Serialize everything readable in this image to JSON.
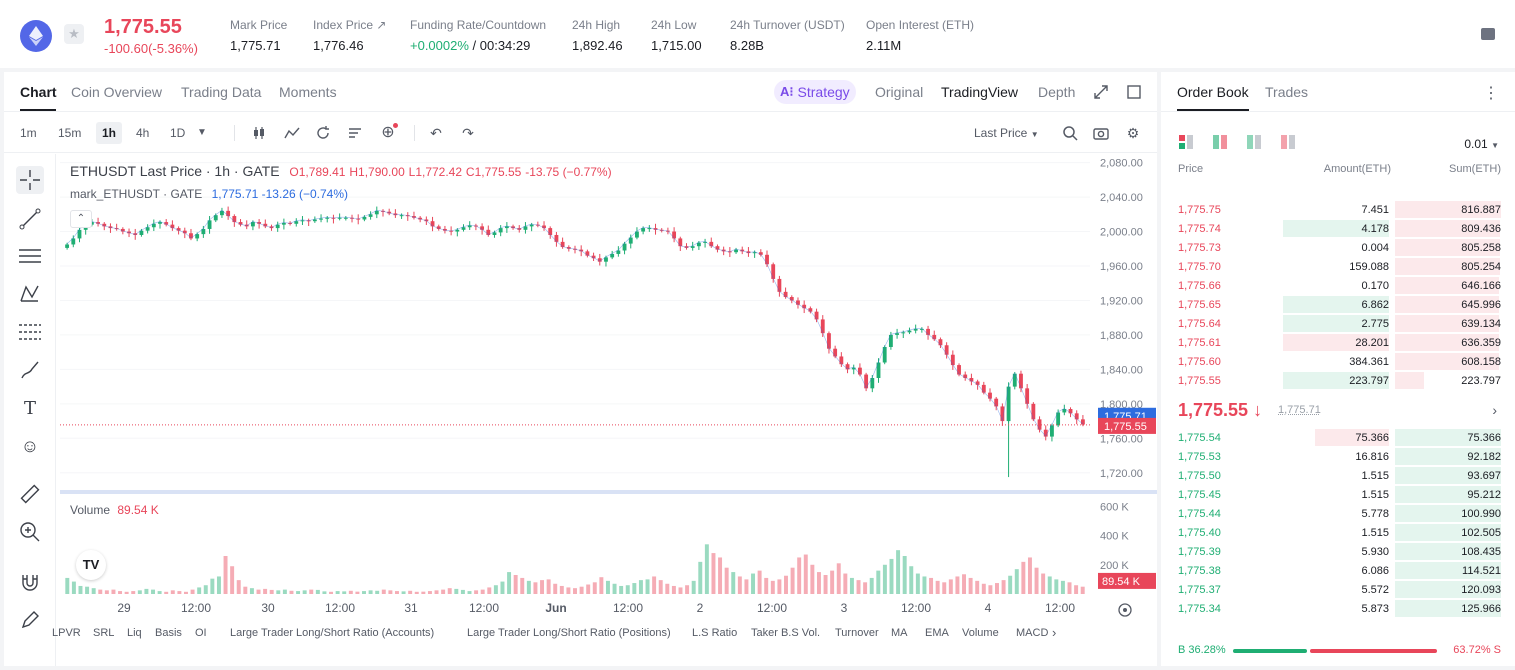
{
  "ticker": {
    "last_price": "1,775.55",
    "change": "-100.60(-5.36%)",
    "stats": [
      {
        "label": "Mark Price",
        "value": "1,775.71",
        "x": 230
      },
      {
        "label": "Index Price ↗",
        "value": "1,776.46",
        "x": 313
      },
      {
        "label": "Funding Rate/Countdown",
        "value_up": "+0.0002%",
        "value": " / 00:34:29",
        "x": 410
      },
      {
        "label": "24h High",
        "value": "1,892.46",
        "x": 572
      },
      {
        "label": "24h Low",
        "value": "1,715.00",
        "x": 651
      },
      {
        "label": "24h Turnover (USDT)",
        "value": "8.28B",
        "x": 730
      },
      {
        "label": "Open Interest (ETH)",
        "value": "2.11M",
        "x": 866
      }
    ]
  },
  "chart_tabs": [
    "Chart",
    "Coin Overview",
    "Trading Data",
    "Moments"
  ],
  "strategy_label": "Strategy",
  "view_options": [
    "Original",
    "TradingView",
    "Depth"
  ],
  "intervals": [
    "1m",
    "15m",
    "1h",
    "4h",
    "1D"
  ],
  "price_type": "Last Price",
  "legend": {
    "symbol": "ETHUSDT Last Price · 1h · GATE",
    "o": "O1,789.41",
    "h": "H1,790.00",
    "l": "L1,772.42",
    "c": "C1,775.55",
    "chg": "-13.75 (−0.77%)",
    "mark_symbol": "mark_ETHUSDT · GATE",
    "mark_val": "1,775.71",
    "mark_chg": "-13.26 (−0.74%)",
    "volume_label": "Volume",
    "volume_val": "89.54 K"
  },
  "indicators": [
    "LPVR",
    "SRL",
    "Liq",
    "Basis",
    "OI",
    "Large Trader Long/Short Ratio (Accounts)",
    "Large Trader Long/Short Ratio (Positions)",
    "L.S Ratio",
    "Taker B.S Vol.",
    "Turnover",
    "MA",
    "EMA",
    "Volume",
    "MACD"
  ],
  "chart_data": {
    "type": "candlestick",
    "price_axis": [
      "2,080.00",
      "2,040.00",
      "2,000.00",
      "1,960.00",
      "1,920.00",
      "1,880.00",
      "1,840.00",
      "1,800.00",
      "1,760.00",
      "1,720.00"
    ],
    "volume_axis": [
      "600 K",
      "400 K",
      "200 K"
    ],
    "time_axis": [
      "29",
      "12:00",
      "30",
      "12:00",
      "31",
      "12:00",
      "Jun",
      "12:00",
      "2",
      "12:00",
      "3",
      "12:00",
      "4",
      "12:00"
    ],
    "mark_price_tag": "1,775.71",
    "last_price_tag": "1,775.55",
    "volume_tag": "89.54 K",
    "ylim": [
      1700,
      2090
    ],
    "close_path": [
      1985,
      1992,
      2002,
      2008,
      2011,
      2009,
      2006,
      2004,
      2003,
      2000,
      1998,
      1996,
      2001,
      2005,
      2009,
      2011,
      2008,
      2004,
      2001,
      1998,
      1992,
      1997,
      2003,
      2013,
      2019,
      2024,
      2018,
      2011,
      2008,
      2006,
      2011,
      2009,
      2006,
      2004,
      2008,
      2010,
      2009,
      2012,
      2013,
      2012,
      2014,
      2015,
      2016,
      2015,
      2016,
      2016,
      2015,
      2014,
      2017,
      2020,
      2024,
      2023,
      2021,
      2019,
      2019,
      2018,
      2016,
      2014,
      2012,
      2006,
      2003,
      2001,
      2000,
      2002,
      2005,
      2007,
      2006,
      2002,
      1996,
      1999,
      2004,
      2006,
      2004,
      2002,
      2006,
      2008,
      2007,
      2004,
      1996,
      1988,
      1982,
      1980,
      1979,
      1977,
      1972,
      1969,
      1965,
      1970,
      1974,
      1978,
      1986,
      1993,
      2000,
      2004,
      2004,
      2002,
      2001,
      2000,
      1992,
      1983,
      1981,
      1983,
      1987,
      1988,
      1983,
      1979,
      1977,
      1976,
      1979,
      1977,
      1975,
      1976,
      1973,
      1962,
      1945,
      1930,
      1924,
      1920,
      1915,
      1911,
      1907,
      1898,
      1882,
      1864,
      1855,
      1846,
      1840,
      1842,
      1834,
      1818,
      1830,
      1848,
      1866,
      1880,
      1882,
      1883,
      1885,
      1887,
      1887,
      1880,
      1875,
      1868,
      1857,
      1845,
      1834,
      1830,
      1826,
      1822,
      1813,
      1806,
      1797,
      1780,
      1820,
      1835,
      1818,
      1800,
      1782,
      1770,
      1762,
      1775,
      1790,
      1794,
      1789,
      1782,
      1776
    ],
    "volume_path": [
      110,
      85,
      55,
      50,
      40,
      30,
      25,
      30,
      20,
      15,
      20,
      25,
      35,
      30,
      20,
      15,
      25,
      20,
      15,
      30,
      45,
      60,
      105,
      120,
      260,
      190,
      95,
      50,
      40,
      30,
      35,
      28,
      25,
      30,
      22,
      20,
      25,
      30,
      28,
      18,
      15,
      20,
      18,
      22,
      16,
      20,
      25,
      22,
      30,
      25,
      20,
      18,
      22,
      15,
      16,
      20,
      25,
      30,
      40,
      35,
      28,
      20,
      25,
      30,
      45,
      60,
      85,
      150,
      130,
      110,
      90,
      80,
      95,
      100,
      70,
      55,
      45,
      40,
      50,
      65,
      80,
      115,
      90,
      70,
      55,
      60,
      75,
      95,
      100,
      120,
      95,
      70,
      55,
      45,
      60,
      90,
      220,
      340,
      280,
      250,
      180,
      150,
      120,
      100,
      140,
      160,
      110,
      90,
      100,
      125,
      180,
      250,
      270,
      200,
      150,
      130,
      160,
      210,
      140,
      110,
      95,
      80,
      110,
      160,
      200,
      240,
      300,
      260,
      190,
      140,
      120,
      110,
      90,
      80,
      100,
      120,
      135,
      110,
      90,
      70,
      60,
      75,
      95,
      125,
      170,
      220,
      250,
      180,
      140,
      120,
      100,
      90,
      80,
      60,
      50
    ]
  },
  "orderbook": {
    "tabs": [
      "Order Book",
      "Trades"
    ],
    "precision": "0.01",
    "headers": {
      "price": "Price",
      "amount": "Amount(ETH)",
      "sum": "Sum(ETH)"
    },
    "asks": [
      {
        "price": "1,775.75",
        "amount": "7.451",
        "sum": "816.887",
        "amt_pct": 0,
        "sum_pct": 100
      },
      {
        "price": "1,775.74",
        "amount": "4.178",
        "sum": "809.436",
        "amt_pct": 100,
        "sum_pct": 99
      },
      {
        "price": "1,775.73",
        "amount": "0.004",
        "sum": "805.258",
        "amt_pct": 0,
        "sum_pct": 99
      },
      {
        "price": "1,775.70",
        "amount": "159.088",
        "sum": "805.254",
        "amt_pct": 0,
        "sum_pct": 99
      },
      {
        "price": "1,775.66",
        "amount": "0.170",
        "sum": "646.166",
        "amt_pct": 0,
        "sum_pct": 98
      },
      {
        "price": "1,775.65",
        "amount": "6.862",
        "sum": "645.996",
        "amt_pct": 100,
        "sum_pct": 98
      },
      {
        "price": "1,775.64",
        "amount": "2.775",
        "sum": "639.134",
        "amt_pct": 100,
        "sum_pct": 98
      },
      {
        "price": "1,775.61",
        "amount": "28.201",
        "sum": "636.359",
        "amt_pct": 100,
        "sum_pct": 98
      },
      {
        "price": "1,775.60",
        "amount": "384.361",
        "sum": "608.158",
        "amt_pct": 0,
        "sum_pct": 98
      },
      {
        "price": "1,775.55",
        "amount": "223.797",
        "sum": "223.797",
        "amt_pct": 100,
        "sum_pct": 27
      }
    ],
    "mid_price": "1,775.55 ↓",
    "mark_price": "1,775.71",
    "bids": [
      {
        "price": "1,775.54",
        "amount": "75.366",
        "sum": "75.366",
        "amt_pct": 70,
        "sum_pct": 100
      },
      {
        "price": "1,775.53",
        "amount": "16.816",
        "sum": "92.182",
        "amt_pct": 0,
        "sum_pct": 100
      },
      {
        "price": "1,775.50",
        "amount": "1.515",
        "sum": "93.697",
        "amt_pct": 0,
        "sum_pct": 100
      },
      {
        "price": "1,775.45",
        "amount": "1.515",
        "sum": "95.212",
        "amt_pct": 0,
        "sum_pct": 100
      },
      {
        "price": "1,775.44",
        "amount": "5.778",
        "sum": "100.990",
        "amt_pct": 0,
        "sum_pct": 100
      },
      {
        "price": "1,775.40",
        "amount": "1.515",
        "sum": "102.505",
        "amt_pct": 0,
        "sum_pct": 100
      },
      {
        "price": "1,775.39",
        "amount": "5.930",
        "sum": "108.435",
        "amt_pct": 0,
        "sum_pct": 100
      },
      {
        "price": "1,775.38",
        "amount": "6.086",
        "sum": "114.521",
        "amt_pct": 0,
        "sum_pct": 100
      },
      {
        "price": "1,775.37",
        "amount": "5.572",
        "sum": "120.093",
        "amt_pct": 0,
        "sum_pct": 100
      },
      {
        "price": "1,775.34",
        "amount": "5.873",
        "sum": "125.966",
        "amt_pct": 0,
        "sum_pct": 100
      }
    ],
    "buy_ratio": "B 36.28%",
    "sell_ratio": "63.72% S",
    "buy_pct": 36.28
  },
  "colors": {
    "up": "#1fae73",
    "down": "#e8465a",
    "accent_purple": "#7a4be8",
    "mark_blue": "#2d6cdf"
  }
}
